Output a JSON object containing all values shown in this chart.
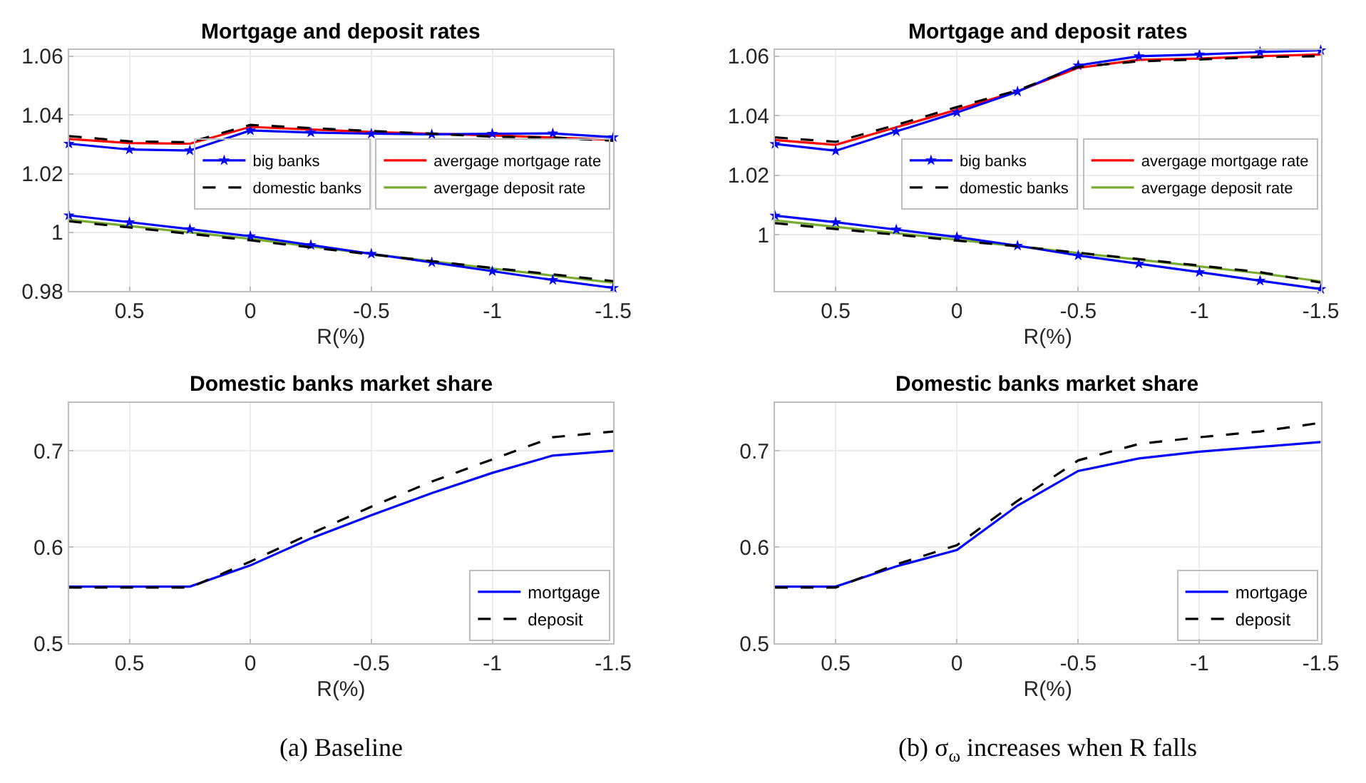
{
  "chart_data": [
    {
      "type": "line",
      "title": "Mortgage and deposit rates",
      "xlabel": "R(%)",
      "x": [
        0.75,
        0.5,
        0.25,
        0,
        -0.25,
        -0.5,
        -0.75,
        -1,
        -1.25,
        -1.5
      ],
      "xlim": [
        0.75,
        -1.5
      ],
      "xticks": [
        0.5,
        0,
        -0.5,
        -1,
        -1.5
      ],
      "ylim": [
        0.98,
        1.062
      ],
      "yticks": [
        0.98,
        1,
        1.02,
        1.04,
        1.06
      ],
      "grid": true,
      "legend": "right",
      "series": [
        {
          "name": "avergage mortgage rate",
          "color": "#ff0000",
          "values": [
            1.0318,
            1.0304,
            1.0302,
            1.0359,
            1.035,
            1.0342,
            1.0336,
            1.033,
            1.0323,
            1.0315
          ]
        },
        {
          "name": "avergage deposit rate",
          "color": "#77ac30",
          "values": [
            1.0043,
            1.0022,
            1.0,
            0.9978,
            0.9952,
            0.9927,
            0.9902,
            0.9877,
            0.9853,
            0.9829
          ]
        },
        {
          "name": "big banks",
          "color": "#0000ff",
          "marker": "star",
          "values": [
            1.0302,
            1.0282,
            1.0279,
            1.0347,
            1.034,
            1.0336,
            1.0334,
            1.0336,
            1.0337,
            1.0324
          ]
        },
        {
          "color": "#0000ff",
          "marker": "star",
          "values": [
            1.0058,
            1.0035,
            1.0011,
            0.9987,
            0.9957,
            0.9927,
            0.9898,
            0.9868,
            0.9838,
            0.9811
          ]
        },
        {
          "name": "domestic banks",
          "color": "#000000",
          "line_style": "dashed",
          "values": [
            1.0328,
            1.031,
            1.0307,
            1.0366,
            1.0355,
            1.0345,
            1.0336,
            1.0326,
            1.0323,
            1.0312
          ]
        },
        {
          "color": "#000000",
          "line_style": "dashed",
          "values": [
            1.0038,
            1.0017,
            0.9995,
            0.9973,
            0.9949,
            0.9925,
            0.9902,
            0.9879,
            0.9857,
            0.9834
          ]
        }
      ]
    },
    {
      "type": "line",
      "title": "Mortgage and deposit rates",
      "xlabel": "R(%)",
      "x": [
        0.75,
        0.5,
        0.25,
        0,
        -0.25,
        -0.5,
        -0.75,
        -1,
        -1.25,
        -1.5
      ],
      "xlim": [
        0.75,
        -1.5
      ],
      "xticks": [
        0.5,
        0,
        -0.5,
        -1,
        -1.5
      ],
      "ylim": [
        0.981,
        1.062
      ],
      "yticks": [
        1,
        1.02,
        1.04,
        1.06
      ],
      "grid": true,
      "legend": "right",
      "series": [
        {
          "name": "avergage mortgage rate",
          "color": "#ff0000",
          "values": [
            1.0318,
            1.0302,
            1.0361,
            1.042,
            1.0482,
            1.0561,
            1.0588,
            1.0592,
            1.06,
            1.0606
          ]
        },
        {
          "name": "avergage deposit rate",
          "color": "#77ac30",
          "values": [
            1.0048,
            1.0026,
            1.0005,
            0.9983,
            0.9961,
            0.9938,
            0.9916,
            0.9893,
            0.987,
            0.9843
          ]
        },
        {
          "name": "big banks",
          "color": "#0000ff",
          "marker": "star",
          "values": [
            1.0305,
            1.0282,
            1.0347,
            1.0411,
            1.0481,
            1.0569,
            1.06,
            1.0606,
            1.0614,
            1.062
          ]
        },
        {
          "color": "#0000ff",
          "marker": "star",
          "values": [
            1.0064,
            1.0042,
            1.0017,
            0.9992,
            0.9963,
            0.993,
            0.9902,
            0.9874,
            0.9845,
            0.9817
          ]
        },
        {
          "name": "domestic banks",
          "color": "#000000",
          "line_style": "dashed",
          "values": [
            1.0327,
            1.0312,
            1.0369,
            1.0429,
            1.0485,
            1.0564,
            1.0583,
            1.0589,
            1.0597,
            1.06
          ]
        },
        {
          "color": "#000000",
          "line_style": "dashed",
          "values": [
            1.0039,
            1.0019,
            1.0,
            0.998,
            0.9961,
            0.9939,
            0.9918,
            0.9896,
            0.9874,
            0.9839
          ]
        }
      ]
    },
    {
      "type": "line",
      "title": "Domestic banks market share",
      "xlabel": "R(%)",
      "x": [
        0.75,
        0.5,
        0.25,
        0,
        -0.25,
        -0.5,
        -0.75,
        -1,
        -1.25,
        -1.5
      ],
      "xlim": [
        0.75,
        -1.5
      ],
      "xticks": [
        0.5,
        0,
        -0.5,
        -1,
        -1.5
      ],
      "ylim": [
        0.5,
        0.75
      ],
      "yticks": [
        0.5,
        0.6,
        0.7
      ],
      "grid": true,
      "legend": "bottom right",
      "annotations": [
        "(a) Baseline"
      ],
      "series": [
        {
          "name": "mortgage",
          "color": "#0000ff",
          "values": [
            0.559,
            0.559,
            0.559,
            0.581,
            0.609,
            0.633,
            0.656,
            0.677,
            0.695,
            0.7
          ]
        },
        {
          "name": "deposit",
          "color": "#000000",
          "line_style": "dashed",
          "values": [
            0.558,
            0.558,
            0.558,
            0.585,
            0.614,
            0.642,
            0.668,
            0.691,
            0.714,
            0.72
          ]
        }
      ]
    },
    {
      "type": "line",
      "title": "Domestic banks market share",
      "xlabel": "R(%)",
      "x": [
        0.75,
        0.5,
        0.25,
        0,
        -0.25,
        -0.5,
        -0.75,
        -1,
        -1.25,
        -1.5
      ],
      "xlim": [
        0.75,
        -1.5
      ],
      "xticks": [
        0.5,
        0,
        -0.5,
        -1,
        -1.5
      ],
      "ylim": [
        0.5,
        0.75
      ],
      "yticks": [
        0.5,
        0.6,
        0.7
      ],
      "grid": true,
      "legend": "bottom right",
      "annotations": [
        "(b) σ$_{ω}$ increases when R falls"
      ],
      "series": [
        {
          "name": "mortgage",
          "color": "#0000ff",
          "values": [
            0.559,
            0.559,
            0.58,
            0.597,
            0.643,
            0.679,
            0.692,
            0.699,
            0.704,
            0.709
          ]
        },
        {
          "name": "deposit",
          "color": "#000000",
          "line_style": "dashed",
          "values": [
            0.558,
            0.558,
            0.582,
            0.602,
            0.648,
            0.69,
            0.707,
            0.714,
            0.72,
            0.729
          ]
        }
      ]
    }
  ]
}
